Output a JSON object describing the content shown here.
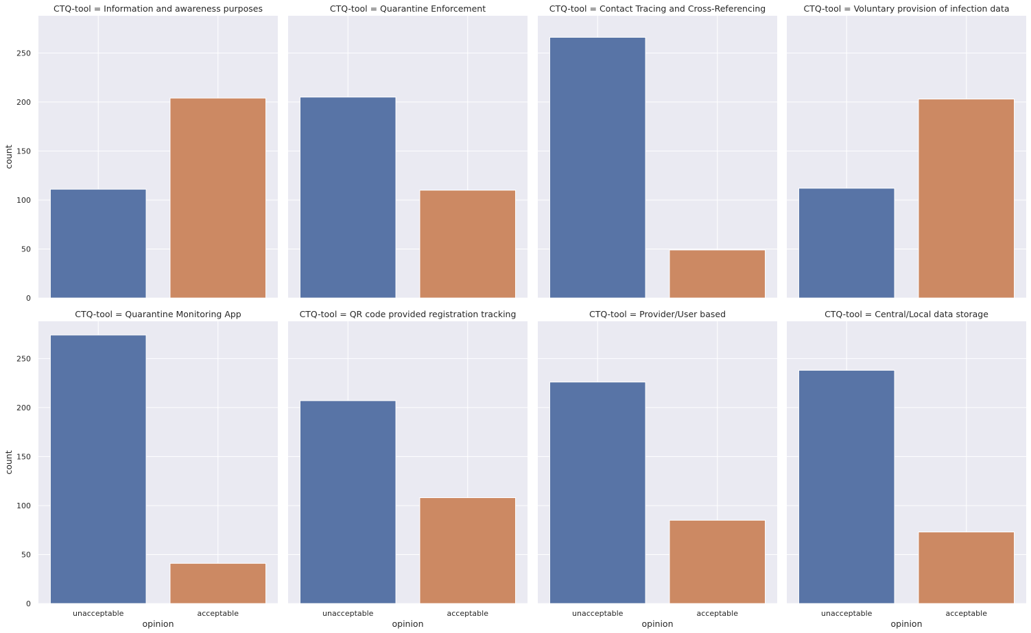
{
  "chart_data": {
    "type": "bar",
    "title_prefix": "CTQ-tool = ",
    "xlabel": "opinion",
    "ylabel": "count",
    "categories": [
      "unacceptable",
      "acceptable"
    ],
    "colors": [
      "#5874a6",
      "#cc8963"
    ],
    "ylim": [
      0,
      288
    ],
    "yticks": [
      0,
      50,
      100,
      150,
      200,
      250
    ],
    "panels": [
      {
        "tool": "Information and awareness purposes",
        "values": [
          111,
          204
        ]
      },
      {
        "tool": "Quarantine Enforcement",
        "values": [
          205,
          110
        ]
      },
      {
        "tool": "Contact Tracing and Cross-Referencing",
        "values": [
          266,
          49
        ]
      },
      {
        "tool": "Voluntary provision of infection data",
        "values": [
          112,
          203
        ]
      },
      {
        "tool": "Quarantine Monitoring App",
        "values": [
          274,
          41
        ]
      },
      {
        "tool": "QR code provided registration tracking",
        "values": [
          207,
          108
        ]
      },
      {
        "tool": "Provider/User based",
        "values": [
          226,
          85
        ]
      },
      {
        "tool": "Central/Local data storage",
        "values": [
          238,
          73
        ]
      }
    ]
  }
}
